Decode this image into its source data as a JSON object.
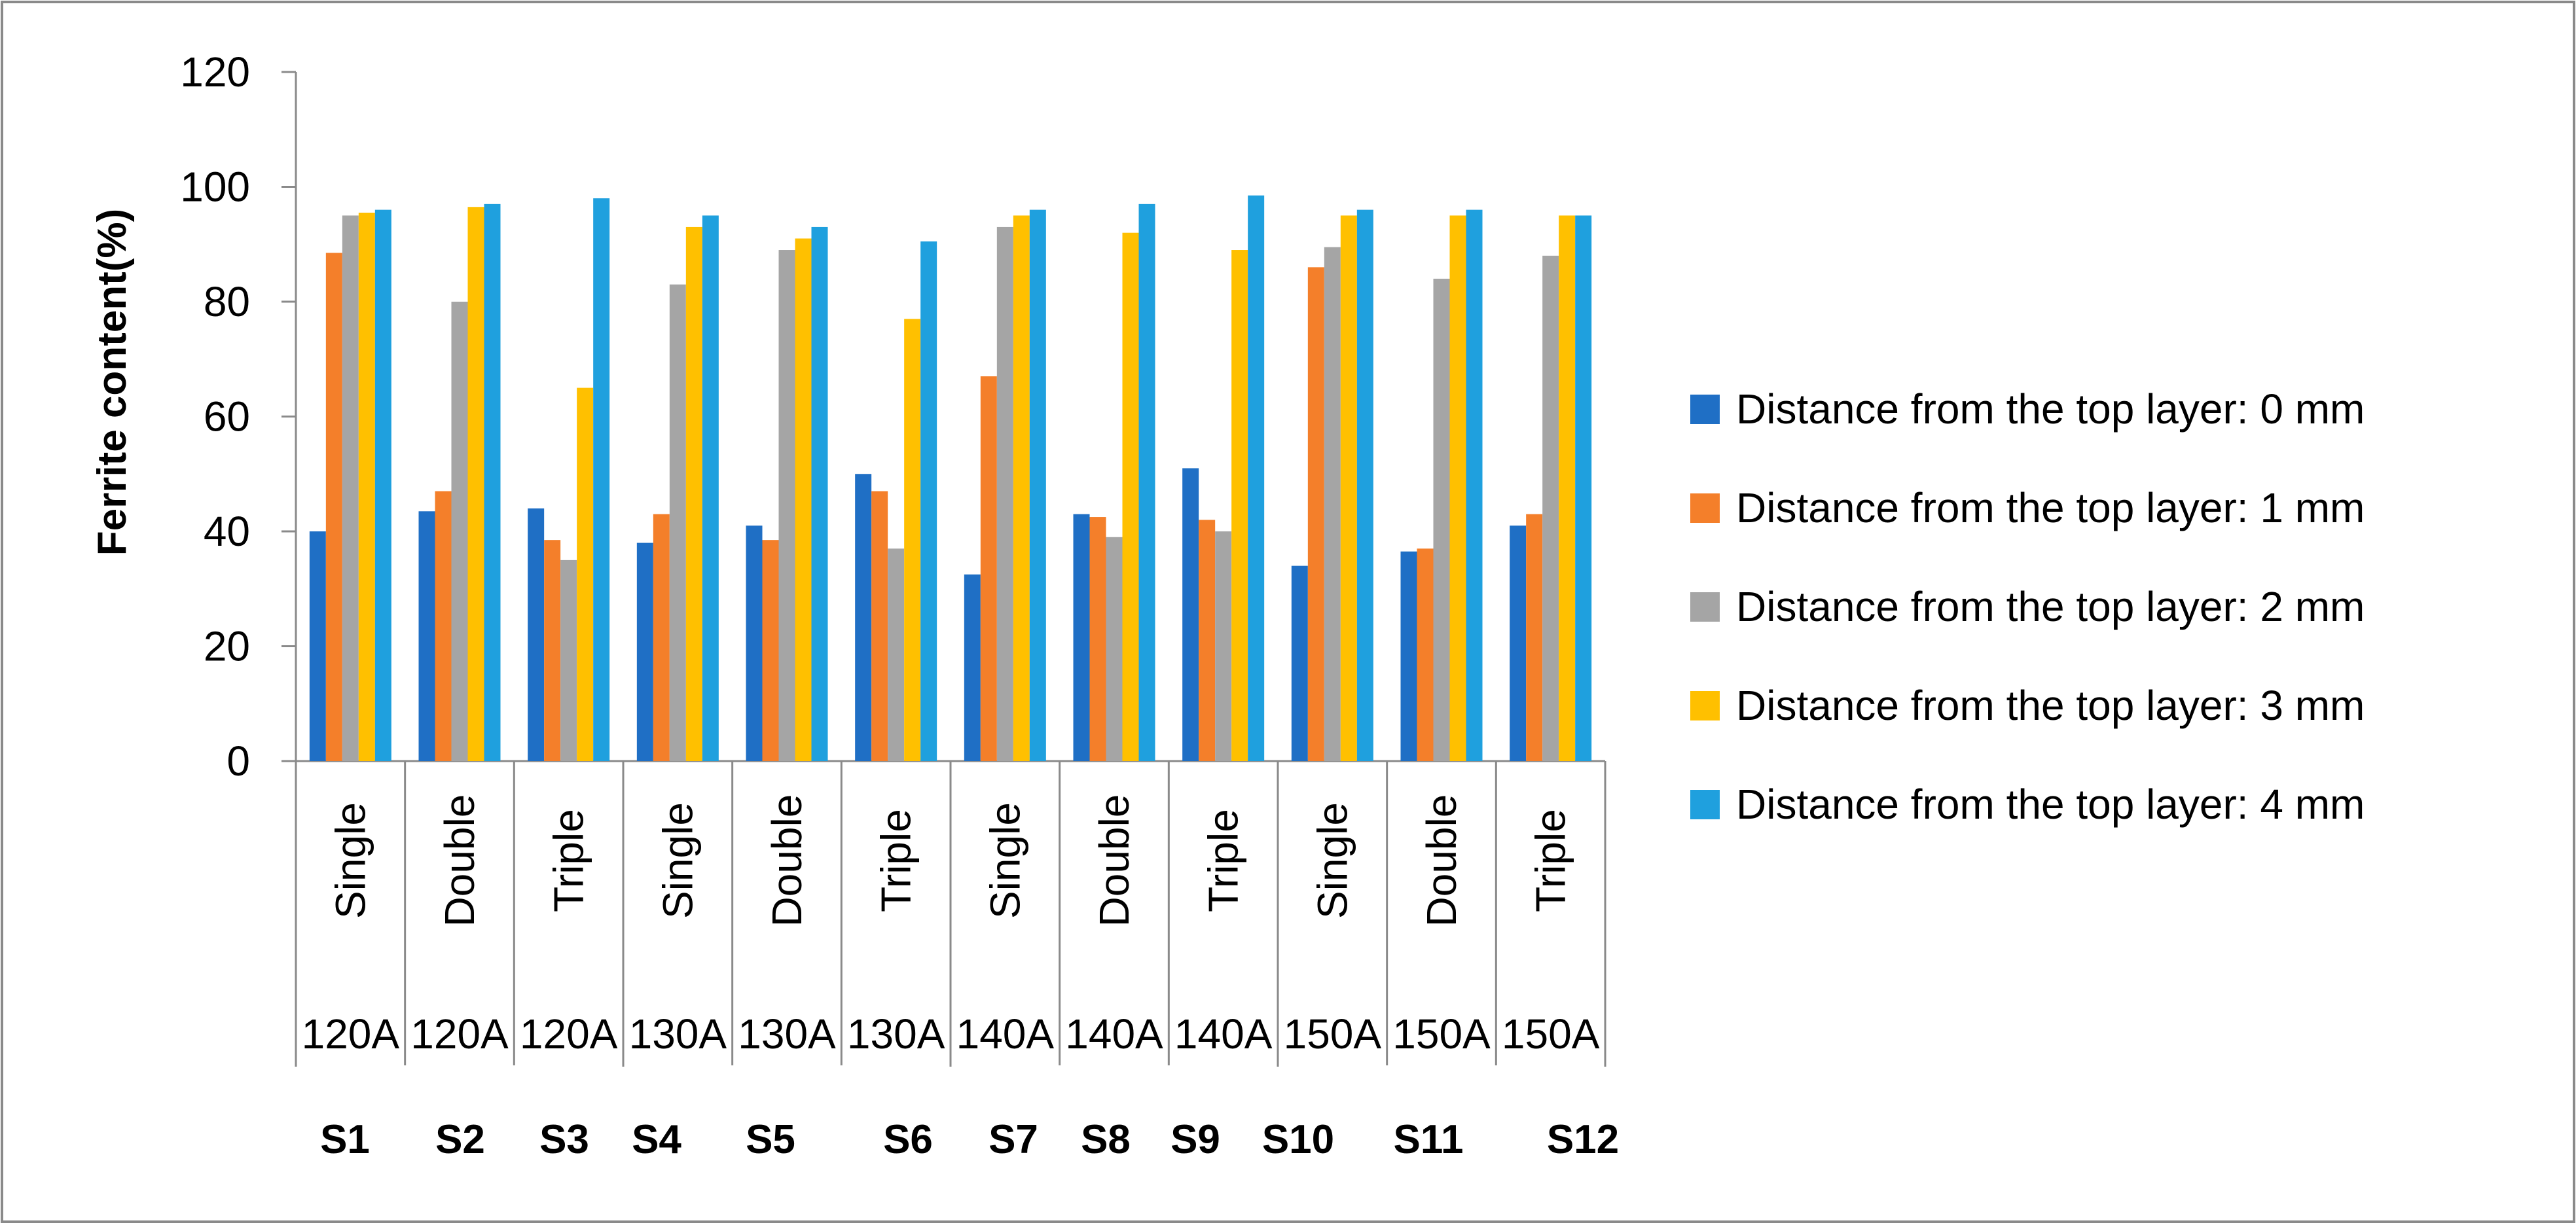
{
  "chart_data": {
    "type": "bar",
    "title": "",
    "xlabel": "",
    "ylabel": "Ferrite content(%)",
    "ylim": [
      0,
      120
    ],
    "yticks": [
      "0",
      "20",
      "40",
      "60",
      "80",
      "100",
      "120"
    ],
    "grid": false,
    "legend_position": "right",
    "categories": [
      {
        "layers": "Single",
        "current": "120A",
        "sample": "S1"
      },
      {
        "layers": "Double",
        "current": "120A",
        "sample": "S2"
      },
      {
        "layers": "Triple",
        "current": "120A",
        "sample": "S3"
      },
      {
        "layers": "Single",
        "current": "130A",
        "sample": "S4"
      },
      {
        "layers": "Double",
        "current": "130A",
        "sample": "S5"
      },
      {
        "layers": "Triple",
        "current": "130A",
        "sample": "S6"
      },
      {
        "layers": "Single",
        "current": "140A",
        "sample": "S7"
      },
      {
        "layers": "Double",
        "current": "140A",
        "sample": "S8"
      },
      {
        "layers": "Triple",
        "current": "140A",
        "sample": "S9"
      },
      {
        "layers": "Single",
        "current": "150A",
        "sample": "S10"
      },
      {
        "layers": "Double",
        "current": "150A",
        "sample": "S11"
      },
      {
        "layers": "Triple",
        "current": "150A",
        "sample": "S12"
      }
    ],
    "series": [
      {
        "name": "Distance from the top layer: 0 mm",
        "color": "#1F6FC5",
        "values": [
          40,
          43.5,
          44,
          38,
          41,
          50,
          32.5,
          43,
          51,
          34,
          36.5,
          41
        ]
      },
      {
        "name": "Distance from the top layer: 1 mm",
        "color": "#F47F2A",
        "values": [
          88.5,
          47,
          38.5,
          43,
          38.5,
          47,
          67,
          42.5,
          42,
          86,
          37,
          43
        ]
      },
      {
        "name": "Distance from the top layer: 2 mm",
        "color": "#A5A5A5",
        "values": [
          95,
          80,
          35,
          83,
          89,
          37,
          93,
          39,
          40,
          89.5,
          84,
          88
        ]
      },
      {
        "name": "Distance from the top layer: 3 mm",
        "color": "#FFC000",
        "values": [
          95.5,
          96.5,
          65,
          93,
          91,
          77,
          95,
          92,
          89,
          95,
          95,
          95
        ]
      },
      {
        "name": "Distance from the top layer: 4 mm",
        "color": "#1FA0DE",
        "values": [
          96,
          97,
          98,
          95,
          93,
          90.5,
          96,
          97,
          98.5,
          96,
          96,
          95
        ]
      }
    ]
  }
}
